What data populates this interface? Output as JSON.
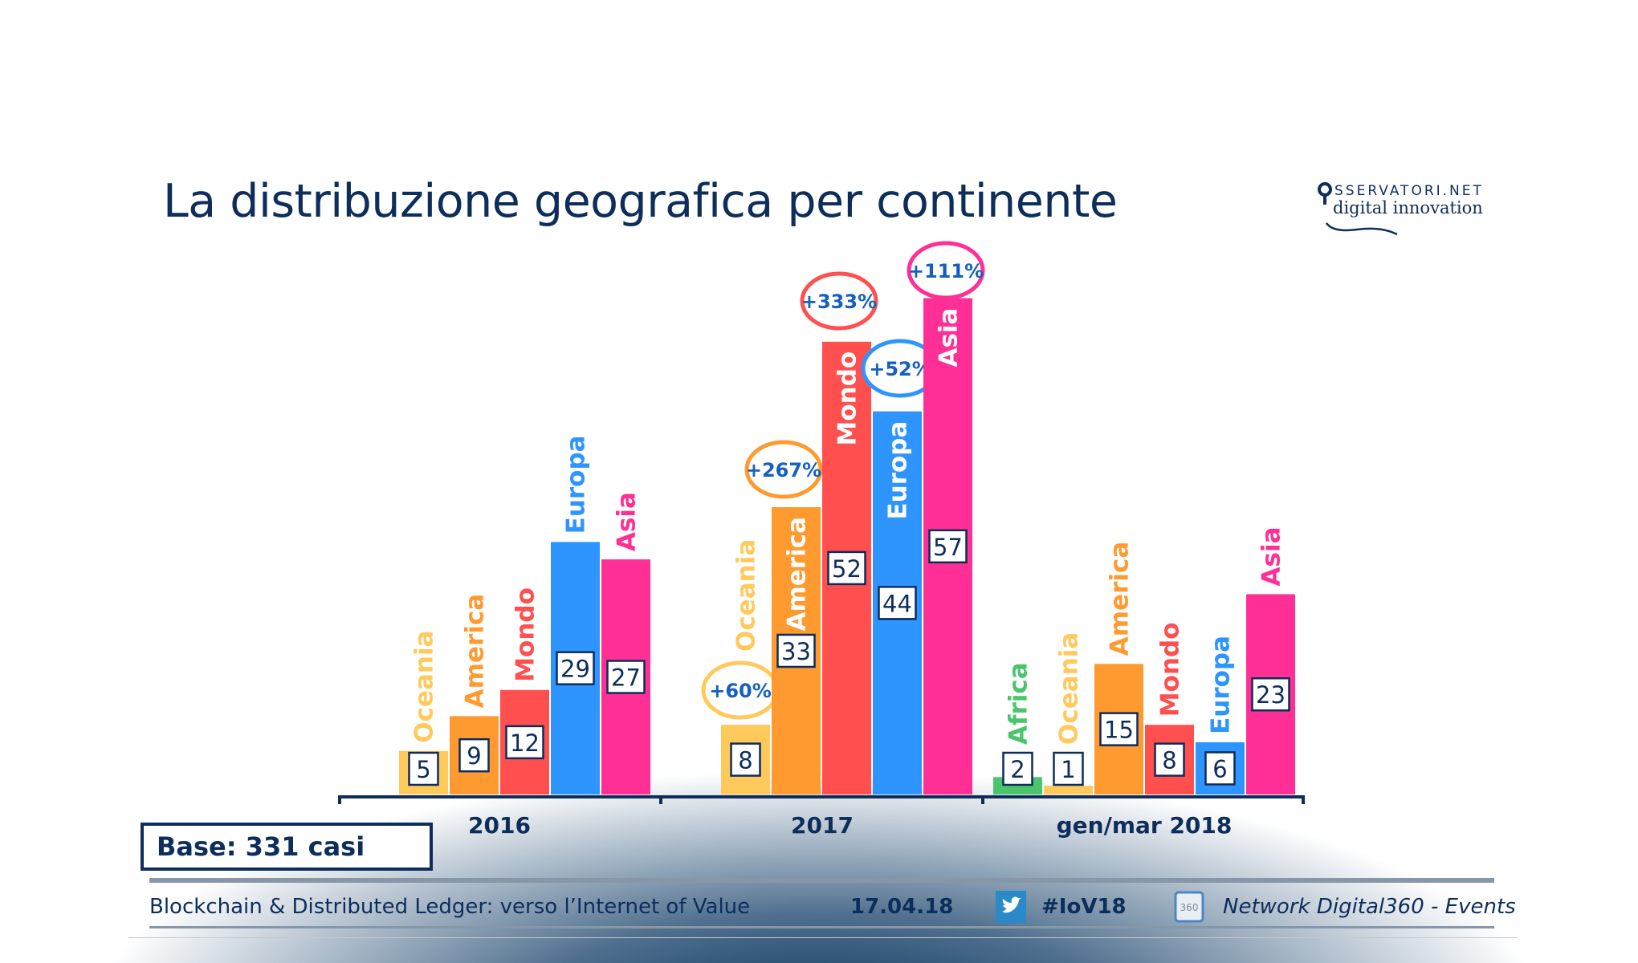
{
  "title": "La distribuzione geografica per continente",
  "logo": {
    "line1": "SSERVATORI.NET",
    "line2": "digital innovation"
  },
  "base_label": "Base: 331 casi",
  "footer": {
    "event_title": "Blockchain & Distributed Ledger: verso l’Internet of Value",
    "date": "17.04.18",
    "hashtag": "#IoV18",
    "network": "Network Digital360 - Events",
    "icons": [
      "twitter-icon",
      "digital360-icon"
    ]
  },
  "colors": {
    "Africa": "#4cc46a",
    "Oceania": "#ffc95c",
    "America": "#ff9a30",
    "Mondo": "#ff4f4f",
    "Europa": "#2e95ff",
    "Asia": "#ff2f95",
    "text": "#0d2d5a",
    "growth_text": "#1560bd"
  },
  "chart_data": {
    "type": "bar",
    "categories": [
      "2016",
      "2017",
      "gen/mar 2018"
    ],
    "groups": [
      {
        "category": "2016",
        "bars": [
          {
            "name": "Oceania",
            "value": 5
          },
          {
            "name": "America",
            "value": 9
          },
          {
            "name": "Mondo",
            "value": 12
          },
          {
            "name": "Europa",
            "value": 29
          },
          {
            "name": "Asia",
            "value": 27
          }
        ]
      },
      {
        "category": "2017",
        "bars": [
          {
            "name": "Oceania",
            "value": 8,
            "growth": "+60%"
          },
          {
            "name": "America",
            "value": 33,
            "growth": "+267%"
          },
          {
            "name": "Mondo",
            "value": 52,
            "growth": "+333%"
          },
          {
            "name": "Europa",
            "value": 44,
            "growth": "+52%"
          },
          {
            "name": "Asia",
            "value": 57,
            "growth": "+111%"
          }
        ]
      },
      {
        "category": "gen/mar 2018",
        "bars": [
          {
            "name": "Africa",
            "value": 2
          },
          {
            "name": "Oceania",
            "value": 1
          },
          {
            "name": "America",
            "value": 15
          },
          {
            "name": "Mondo",
            "value": 8
          },
          {
            "name": "Europa",
            "value": 6
          },
          {
            "name": "Asia",
            "value": 23
          }
        ]
      }
    ],
    "grid": false,
    "legend": "none"
  }
}
